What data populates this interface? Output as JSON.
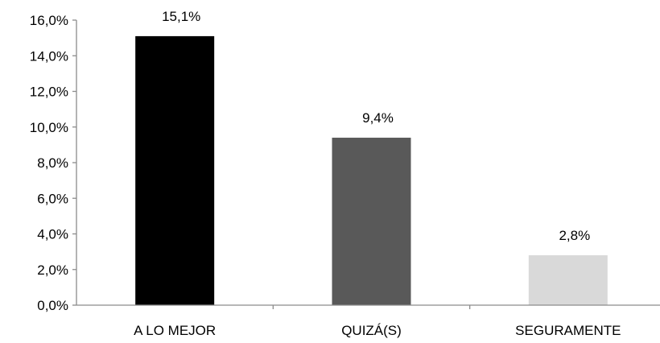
{
  "chart_data": {
    "type": "bar",
    "categories": [
      "A LO MEJOR",
      "QUIZÁ(S)",
      "SEGURAMENTE"
    ],
    "values": [
      15.1,
      9.4,
      2.8
    ],
    "value_labels": [
      "15,1%",
      "9,4%",
      "2,8%"
    ],
    "ylim": [
      0,
      16
    ],
    "yticks": [
      0,
      2,
      4,
      6,
      8,
      10,
      12,
      14,
      16
    ],
    "ytick_labels": [
      "0,0%",
      "2,0%",
      "4,0%",
      "6,0%",
      "8,0%",
      "10,0%",
      "12,0%",
      "14,0%",
      "16,0%"
    ],
    "bar_colors": [
      "#000000",
      "#595959",
      "#d9d9d9"
    ],
    "grid": false,
    "legend": "none",
    "title": "",
    "xlabel": "",
    "ylabel": ""
  }
}
